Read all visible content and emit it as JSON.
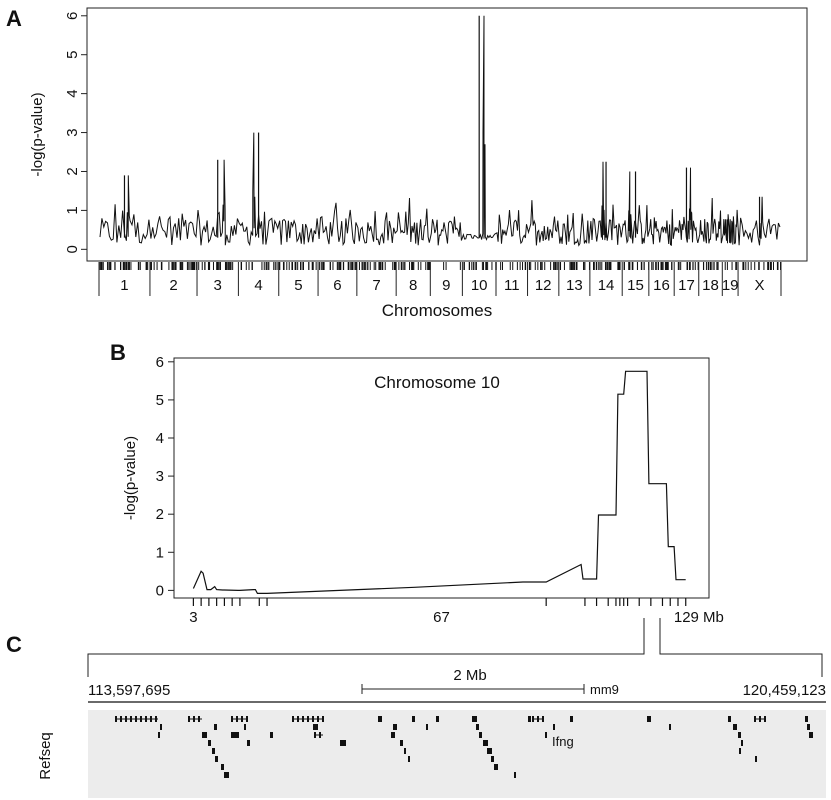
{
  "panels": {
    "a": {
      "letter": "A"
    },
    "b": {
      "letter": "B"
    },
    "c": {
      "letter": "C"
    }
  },
  "chart_data": [
    {
      "id": "genome-scan",
      "type": "line",
      "ylabel": "-log(p-value)",
      "xlabel": "Chromosomes",
      "ylim": [
        -0.3,
        6.2
      ],
      "yticks": [
        0,
        1,
        2,
        3,
        4,
        5,
        6
      ],
      "chromosomes": [
        "1",
        "2",
        "3",
        "4",
        "5",
        "6",
        "7",
        "8",
        "9",
        "10",
        "11",
        "12",
        "13",
        "14",
        "15",
        "16",
        "17",
        "18",
        "19",
        "X"
      ],
      "peaks": [
        {
          "chromosome": "1",
          "value": 1.9
        },
        {
          "chromosome": "3",
          "value": 2.3
        },
        {
          "chromosome": "4",
          "value": 3.0
        },
        {
          "chromosome": "10",
          "value": 6.0
        },
        {
          "chromosome": "14",
          "value": 2.25
        },
        {
          "chromosome": "15",
          "value": 2.0
        },
        {
          "chromosome": "17",
          "value": 2.1
        },
        {
          "chromosome": "X",
          "value": 1.35
        }
      ]
    },
    {
      "id": "chr10-scan",
      "type": "line",
      "title": "Chromosome 10",
      "ylabel": "-log(p-value)",
      "xtick_labels": [
        "3",
        "67",
        "129 Mb"
      ],
      "xtick_values": [
        3,
        67,
        129
      ],
      "xlim": [
        -2,
        136
      ],
      "ylim": [
        -0.2,
        6.1
      ],
      "yticks": [
        0,
        1,
        2,
        3,
        4,
        5,
        6
      ],
      "x": [
        3,
        5,
        5.5,
        6.5,
        7.5,
        8.5,
        9,
        10.5,
        11,
        14.5,
        15,
        18.5,
        19,
        19.5,
        22,
        60,
        88,
        94,
        103,
        103.5,
        105,
        107,
        107.5,
        112,
        112.5,
        114,
        114.5,
        117,
        117.5,
        120,
        120.5,
        125,
        125.5,
        127,
        127.5,
        130
      ],
      "y": [
        0.05,
        0.5,
        0.45,
        0.02,
        0.02,
        0.1,
        0.02,
        0.01,
        0.01,
        0.0,
        0.0,
        0.02,
        0.02,
        -0.08,
        -0.08,
        0.08,
        0.22,
        0.22,
        0.68,
        0.3,
        0.3,
        0.3,
        1.98,
        1.98,
        5.15,
        5.15,
        5.75,
        5.75,
        5.75,
        5.75,
        2.8,
        2.8,
        1.15,
        1.15,
        0.28,
        0.28
      ]
    }
  ],
  "track": {
    "start": "113,597,695",
    "end": "120,459,123",
    "scale_label": "2 Mb",
    "assembly": "mm9",
    "track_label": "Refseq",
    "gene_label": "Ifng"
  }
}
